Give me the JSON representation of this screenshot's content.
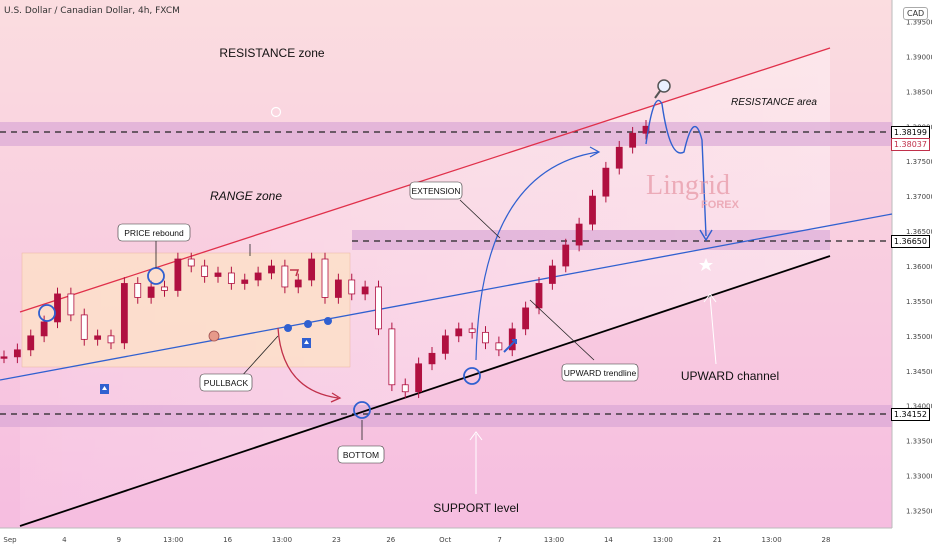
{
  "header": {
    "symbol": "U.S. Dollar / Canadian Dollar, 4h, FXCM"
  },
  "currency_badge": "CAD",
  "watermark": {
    "brand": "Lingrid",
    "sub": "FOREX"
  },
  "annotations": {
    "resistance_zone": "RESISTANCE zone",
    "resistance_area": "RESISTANCE area",
    "range_zone": "RANGE zone",
    "price_rebound": "PRICE rebound",
    "pullback": "PULLBACK",
    "extension": "EXTENSION",
    "upward_trendline": "UPWARD trendline",
    "upward_channel": "UPWARD channel",
    "bottom": "BOTTOM",
    "support_level": "SUPPORT level"
  },
  "colors": {
    "background_top": "#fbd7dc",
    "background_bottom": "#f7c0e0",
    "zone_band": "#d9a6d6",
    "range_box": "#fde1c8",
    "candle": "#b01040",
    "channel_top": "#e0304a",
    "trendline": "#3060d0",
    "channel_bottom": "#000000",
    "circle": "#3060d0"
  },
  "chart_data": {
    "type": "candlestick",
    "symbol": "USDCAD",
    "timeframe": "4h",
    "y_axis": {
      "ticks": [
        "1.39500",
        "1.39000",
        "1.38500",
        "1.38000",
        "1.37500",
        "1.37000",
        "1.36500",
        "1.36000",
        "1.35500",
        "1.35000",
        "1.34500",
        "1.34000",
        "1.33500",
        "1.33000",
        "1.32500"
      ],
      "range": [
        1.3225,
        1.3975
      ]
    },
    "x_axis": {
      "ticks": [
        "Sep",
        "4",
        "9",
        "13:00",
        "16",
        "13:00",
        "23",
        "26",
        "Oct",
        "7",
        "13:00",
        "14",
        "13:00",
        "21",
        "13:00",
        "28"
      ]
    },
    "price_levels": [
      {
        "value": "1.38199",
        "style": "dashed"
      },
      {
        "value": "1.38037",
        "style": "label"
      },
      {
        "value": "1.36650",
        "style": "dashed"
      },
      {
        "value": "1.34152",
        "style": "dashed"
      }
    ],
    "close_series_approx": [
      1.347,
      1.348,
      1.35,
      1.352,
      1.356,
      1.353,
      1.3495,
      1.35,
      1.349,
      1.3575,
      1.3555,
      1.357,
      1.3565,
      1.361,
      1.36,
      1.3585,
      1.359,
      1.3575,
      1.358,
      1.359,
      1.36,
      1.357,
      1.358,
      1.361,
      1.3555,
      1.358,
      1.356,
      1.357,
      1.351,
      1.343,
      1.342,
      1.346,
      1.3475,
      1.35,
      1.351,
      1.3505,
      1.349,
      1.348,
      1.351,
      1.354,
      1.3575,
      1.36,
      1.363,
      1.366,
      1.37,
      1.374,
      1.377,
      1.379,
      1.38
    ]
  }
}
